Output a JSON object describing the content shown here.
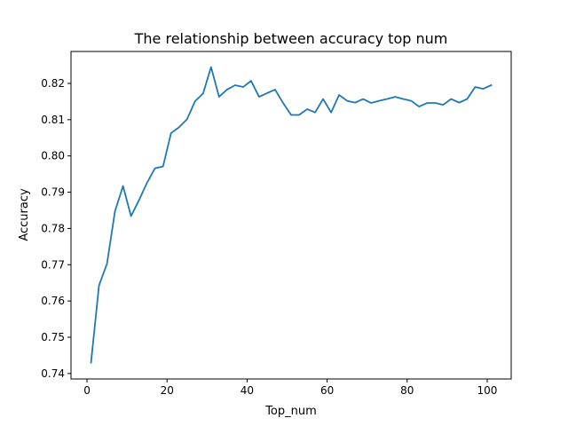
{
  "chart_data": {
    "type": "line",
    "title": "The relationship between accuracy top num",
    "xlabel": "Top_num",
    "ylabel": "Accuracy",
    "xlim": [
      -4,
      106
    ],
    "ylim": [
      0.7385,
      0.8288
    ],
    "xticks": [
      0,
      20,
      40,
      60,
      80,
      100
    ],
    "xtick_labels": [
      "0",
      "20",
      "40",
      "60",
      "80",
      "100"
    ],
    "yticks": [
      0.74,
      0.75,
      0.76,
      0.77,
      0.78,
      0.79,
      0.8,
      0.81,
      0.82
    ],
    "ytick_labels": [
      "0.74",
      "0.75",
      "0.76",
      "0.77",
      "0.78",
      "0.79",
      "0.80",
      "0.81",
      "0.82"
    ],
    "grid": false,
    "legend": "none",
    "series": [
      {
        "color": "#1f77b4",
        "x": [
          1,
          3,
          5,
          7,
          9,
          11,
          13,
          15,
          17,
          19,
          21,
          23,
          25,
          27,
          29,
          31,
          33,
          35,
          37,
          39,
          41,
          43,
          45,
          47,
          49,
          51,
          53,
          55,
          57,
          59,
          61,
          63,
          65,
          67,
          69,
          71,
          73,
          75,
          77,
          79,
          81,
          83,
          85,
          87,
          89,
          91,
          93,
          95,
          97,
          99,
          101
        ],
        "y": [
          0.743,
          0.7643,
          0.7703,
          0.7848,
          0.7917,
          0.7834,
          0.7878,
          0.7926,
          0.7966,
          0.7971,
          0.8063,
          0.8079,
          0.8101,
          0.8151,
          0.8172,
          0.8245,
          0.8163,
          0.8183,
          0.8195,
          0.819,
          0.8207,
          0.8163,
          0.8173,
          0.8183,
          0.8146,
          0.8113,
          0.8113,
          0.8129,
          0.812,
          0.8157,
          0.812,
          0.8168,
          0.8152,
          0.8147,
          0.8157,
          0.8146,
          0.8152,
          0.8157,
          0.8163,
          0.8157,
          0.8152,
          0.8136,
          0.8146,
          0.8146,
          0.8141,
          0.8157,
          0.8147,
          0.8157,
          0.819,
          0.8185,
          0.8195
        ]
      }
    ]
  }
}
